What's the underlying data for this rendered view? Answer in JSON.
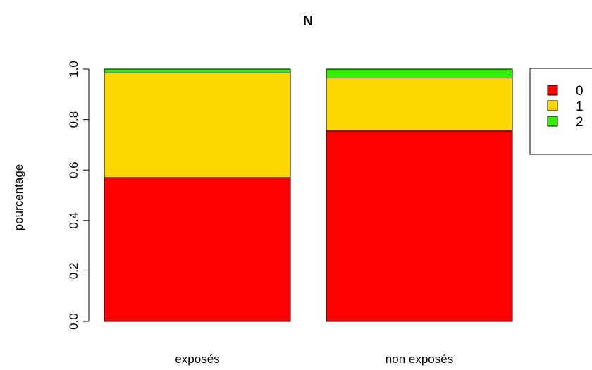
{
  "chart_data": {
    "type": "bar",
    "stacked": true,
    "title": "N",
    "xlabel": "",
    "ylabel": "pourcentage",
    "ylim": [
      0,
      1
    ],
    "yticks": [
      "0.0",
      "0.2",
      "0.4",
      "0.6",
      "0.8",
      "1.0"
    ],
    "categories": [
      "exposés",
      "non exposés"
    ],
    "series": [
      {
        "name": "0",
        "color": "#ff0000",
        "values": [
          0.57,
          0.755
        ]
      },
      {
        "name": "1",
        "color": "#ffd700",
        "values": [
          0.415,
          0.21
        ]
      },
      {
        "name": "2",
        "color": "#33ee00",
        "values": [
          0.015,
          0.035
        ]
      }
    ],
    "grid": false,
    "legend_position": "right"
  }
}
